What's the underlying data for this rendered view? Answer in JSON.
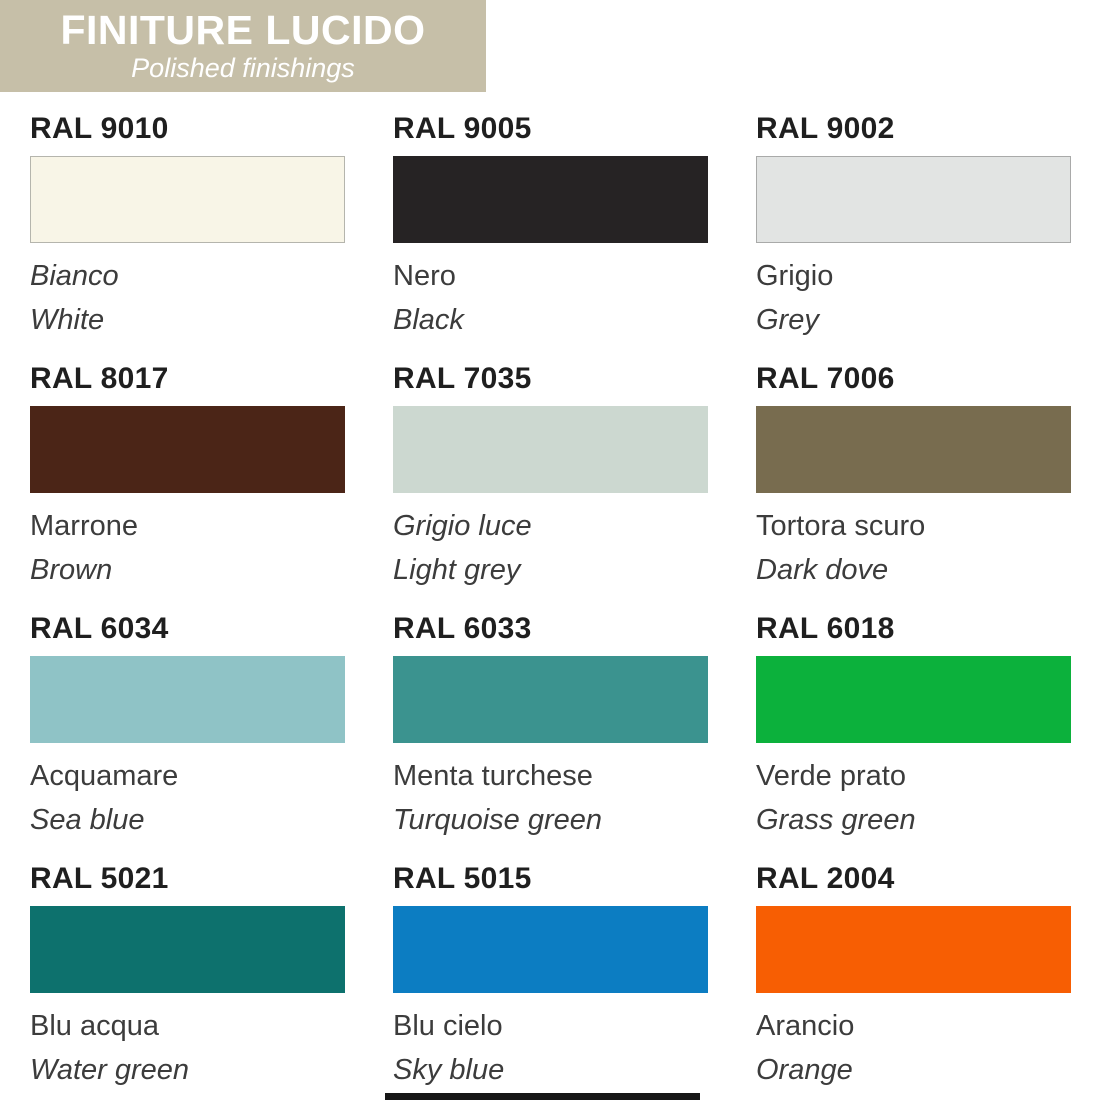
{
  "header": {
    "title": "FINITURE LUCIDO",
    "subtitle": "Polished finishings",
    "bg_color": "#c6bfa8",
    "text_color": "#ffffff"
  },
  "swatches": [
    {
      "ral": "RAL 9010",
      "name_it": "Bianco",
      "name_en": "White",
      "color": "#f8f5e7",
      "border": "#b5b5ad",
      "it_italic": true
    },
    {
      "ral": "RAL 9005",
      "name_it": "Nero",
      "name_en": "Black",
      "color": "#262324",
      "border": "",
      "it_italic": false
    },
    {
      "ral": "RAL 9002",
      "name_it": "Grigio",
      "name_en": "Grey",
      "color": "#e2e4e3",
      "border": "#a9aaa9",
      "it_italic": false
    },
    {
      "ral": "RAL 8017",
      "name_it": "Marrone",
      "name_en": "Brown",
      "color": "#4b2517",
      "border": "",
      "it_italic": false
    },
    {
      "ral": "RAL 7035",
      "name_it": "Grigio luce",
      "name_en": "Light grey",
      "color": "#ccd8d0",
      "border": "",
      "it_italic": true
    },
    {
      "ral": "RAL 7006",
      "name_it": "Tortora scuro",
      "name_en": "Dark dove",
      "color": "#786c4f",
      "border": "",
      "it_italic": false
    },
    {
      "ral": "RAL 6034",
      "name_it": "Acquamare",
      "name_en": "Sea blue",
      "color": "#8fc3c6",
      "border": "",
      "it_italic": false
    },
    {
      "ral": "RAL 6033",
      "name_it": "Menta turchese",
      "name_en": "Turquoise green",
      "color": "#3b938f",
      "border": "",
      "it_italic": false
    },
    {
      "ral": "RAL 6018",
      "name_it": "Verde prato",
      "name_en": "Grass green",
      "color": "#0cb13c",
      "border": "",
      "it_italic": false
    },
    {
      "ral": "RAL 5021",
      "name_it": "Blu acqua",
      "name_en": "Water green",
      "color": "#0d716d",
      "border": "",
      "it_italic": false
    },
    {
      "ral": "RAL 5015",
      "name_it": "Blu cielo",
      "name_en": "Sky blue",
      "color": "#0c7dc2",
      "border": "",
      "it_italic": false
    },
    {
      "ral": "RAL 2004",
      "name_it": "Arancio",
      "name_en": "Orange",
      "color": "#f75e03",
      "border": "",
      "it_italic": false
    }
  ],
  "footer": {
    "bar_color": "#161616"
  }
}
